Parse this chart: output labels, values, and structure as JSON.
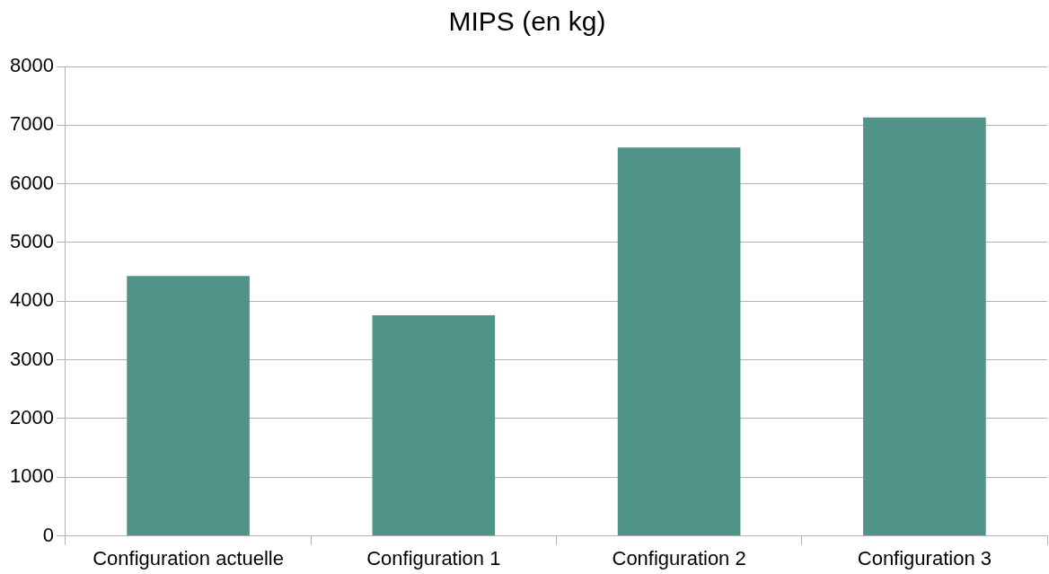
{
  "chart_data": {
    "type": "bar",
    "title": "MIPS (en kg)",
    "categories": [
      "Configuration actuelle",
      "Configuration 1",
      "Configuration 2",
      "Configuration 3"
    ],
    "values": [
      4430,
      3760,
      6620,
      7130
    ],
    "color": "#4f9389",
    "ylim": [
      0,
      8000
    ],
    "yticks": [
      0,
      1000,
      2000,
      3000,
      4000,
      5000,
      6000,
      7000,
      8000
    ],
    "grid": "y",
    "legend": false
  }
}
